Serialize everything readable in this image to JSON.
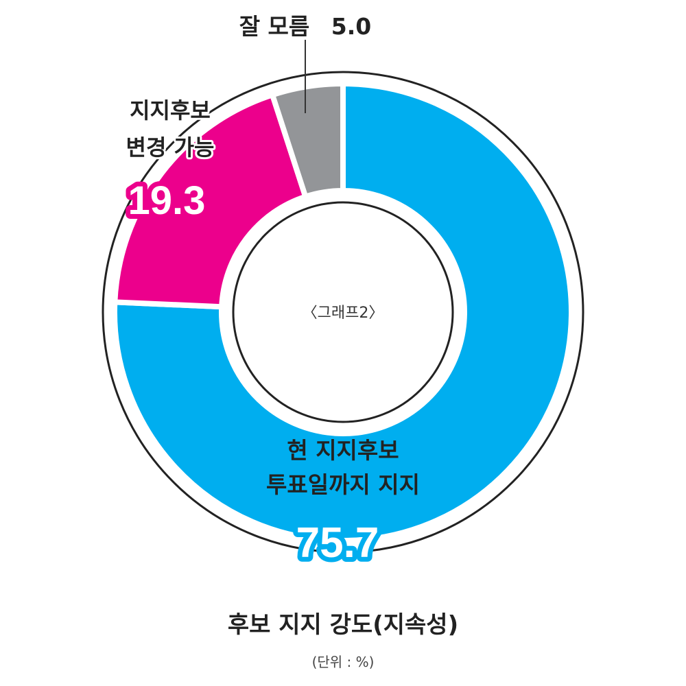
{
  "chart_data": {
    "type": "pie",
    "title": "후보 지지 강도(지속성)",
    "unit": "(단위 : %)",
    "center_label": "〈그래프2〉",
    "slices": [
      {
        "label_lines": [
          "현 지지후보",
          "투표일까지 지지"
        ],
        "value": 75.7,
        "value_text": "75.7",
        "color": "#00aeef"
      },
      {
        "label_lines": [
          "지지후보",
          "변경 가능"
        ],
        "value": 19.3,
        "value_text": "19.3",
        "color": "#ec008c"
      },
      {
        "label_lines": [
          "잘 모름"
        ],
        "value": 5.0,
        "value_text": "5.0",
        "color": "#939598"
      }
    ]
  }
}
